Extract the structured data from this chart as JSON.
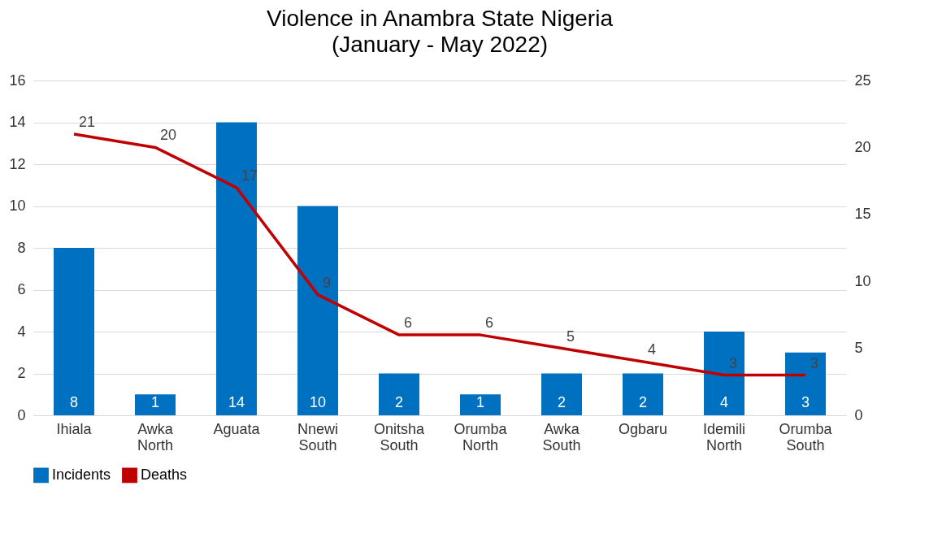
{
  "chart_data": {
    "type": "bar",
    "title": "Violence in Anambra State Nigeria",
    "subtitle": "(January - May 2022)",
    "categories": [
      "Ihiala",
      "Awka North",
      "Aguata",
      "Nnewi South",
      "Onitsha South",
      "Orumba North",
      "Awka South",
      "Ogbaru",
      "Idemili North",
      "Orumba South"
    ],
    "series": [
      {
        "name": "Incidents",
        "color": "#0070c0",
        "values": [
          8,
          1,
          14,
          10,
          2,
          1,
          2,
          2,
          4,
          3
        ]
      },
      {
        "name": "Deaths",
        "type": "line",
        "axis": "y2",
        "color": "#c00000",
        "values": [
          21,
          20,
          17,
          9,
          6,
          6,
          5,
          4,
          3,
          3
        ]
      }
    ],
    "ylim": [
      0,
      16
    ],
    "yticks": [
      0,
      2,
      4,
      6,
      8,
      10,
      12,
      14,
      16
    ],
    "y2lim": [
      0,
      25
    ],
    "y2ticks": [
      0,
      5,
      10,
      15,
      20,
      25
    ],
    "grid": "y",
    "legend": "bottom",
    "data_labels": true
  }
}
